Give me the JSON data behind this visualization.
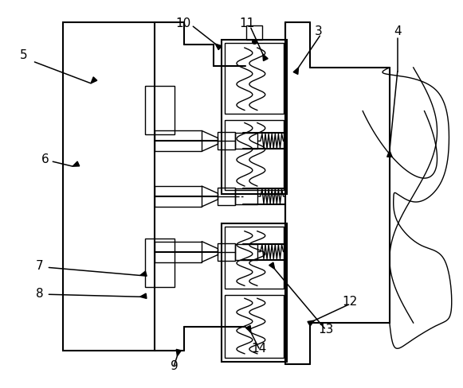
{
  "fig_width": 5.81,
  "fig_height": 4.89,
  "dpi": 100,
  "line_color": "black",
  "bg_color": "white"
}
